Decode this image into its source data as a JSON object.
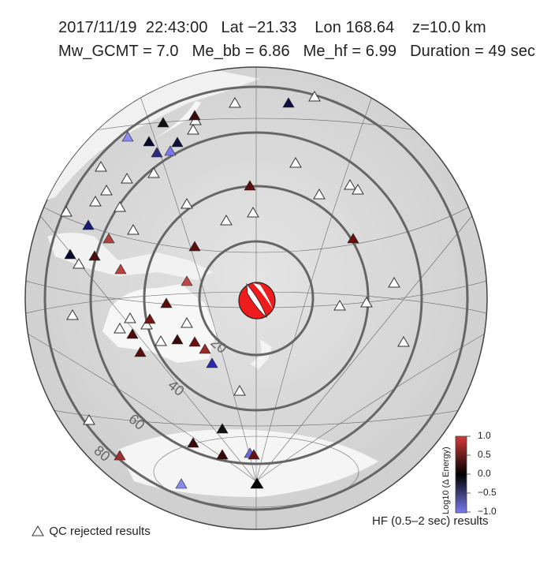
{
  "header": {
    "line1": "2017/11/19  22:43:00   Lat −21.33    Lon 168.64    z=10.0 km",
    "line2": "Mw_GCMT = 7.0   Me_bb = 6.86   Me_hf = 6.99   Duration = 49 sec"
  },
  "distance_labels": [
    "20",
    "40",
    "60",
    "80"
  ],
  "legend": {
    "qc_rejected": "QC rejected results",
    "hf_results": "HF (0.5–2 sec) results"
  },
  "colorbar": {
    "title": "Log10 (Δ Energy)",
    "ticks": [
      "1.0",
      "0.5",
      "0.0",
      "−0.5",
      "−1.0"
    ],
    "colors": {
      "high": "#d43a3a",
      "mid": "#000000",
      "low": "#7a7af0"
    }
  },
  "mechanism": {
    "compression_color": "#ee1c1c",
    "dilation_color": "#ffffff"
  }
}
